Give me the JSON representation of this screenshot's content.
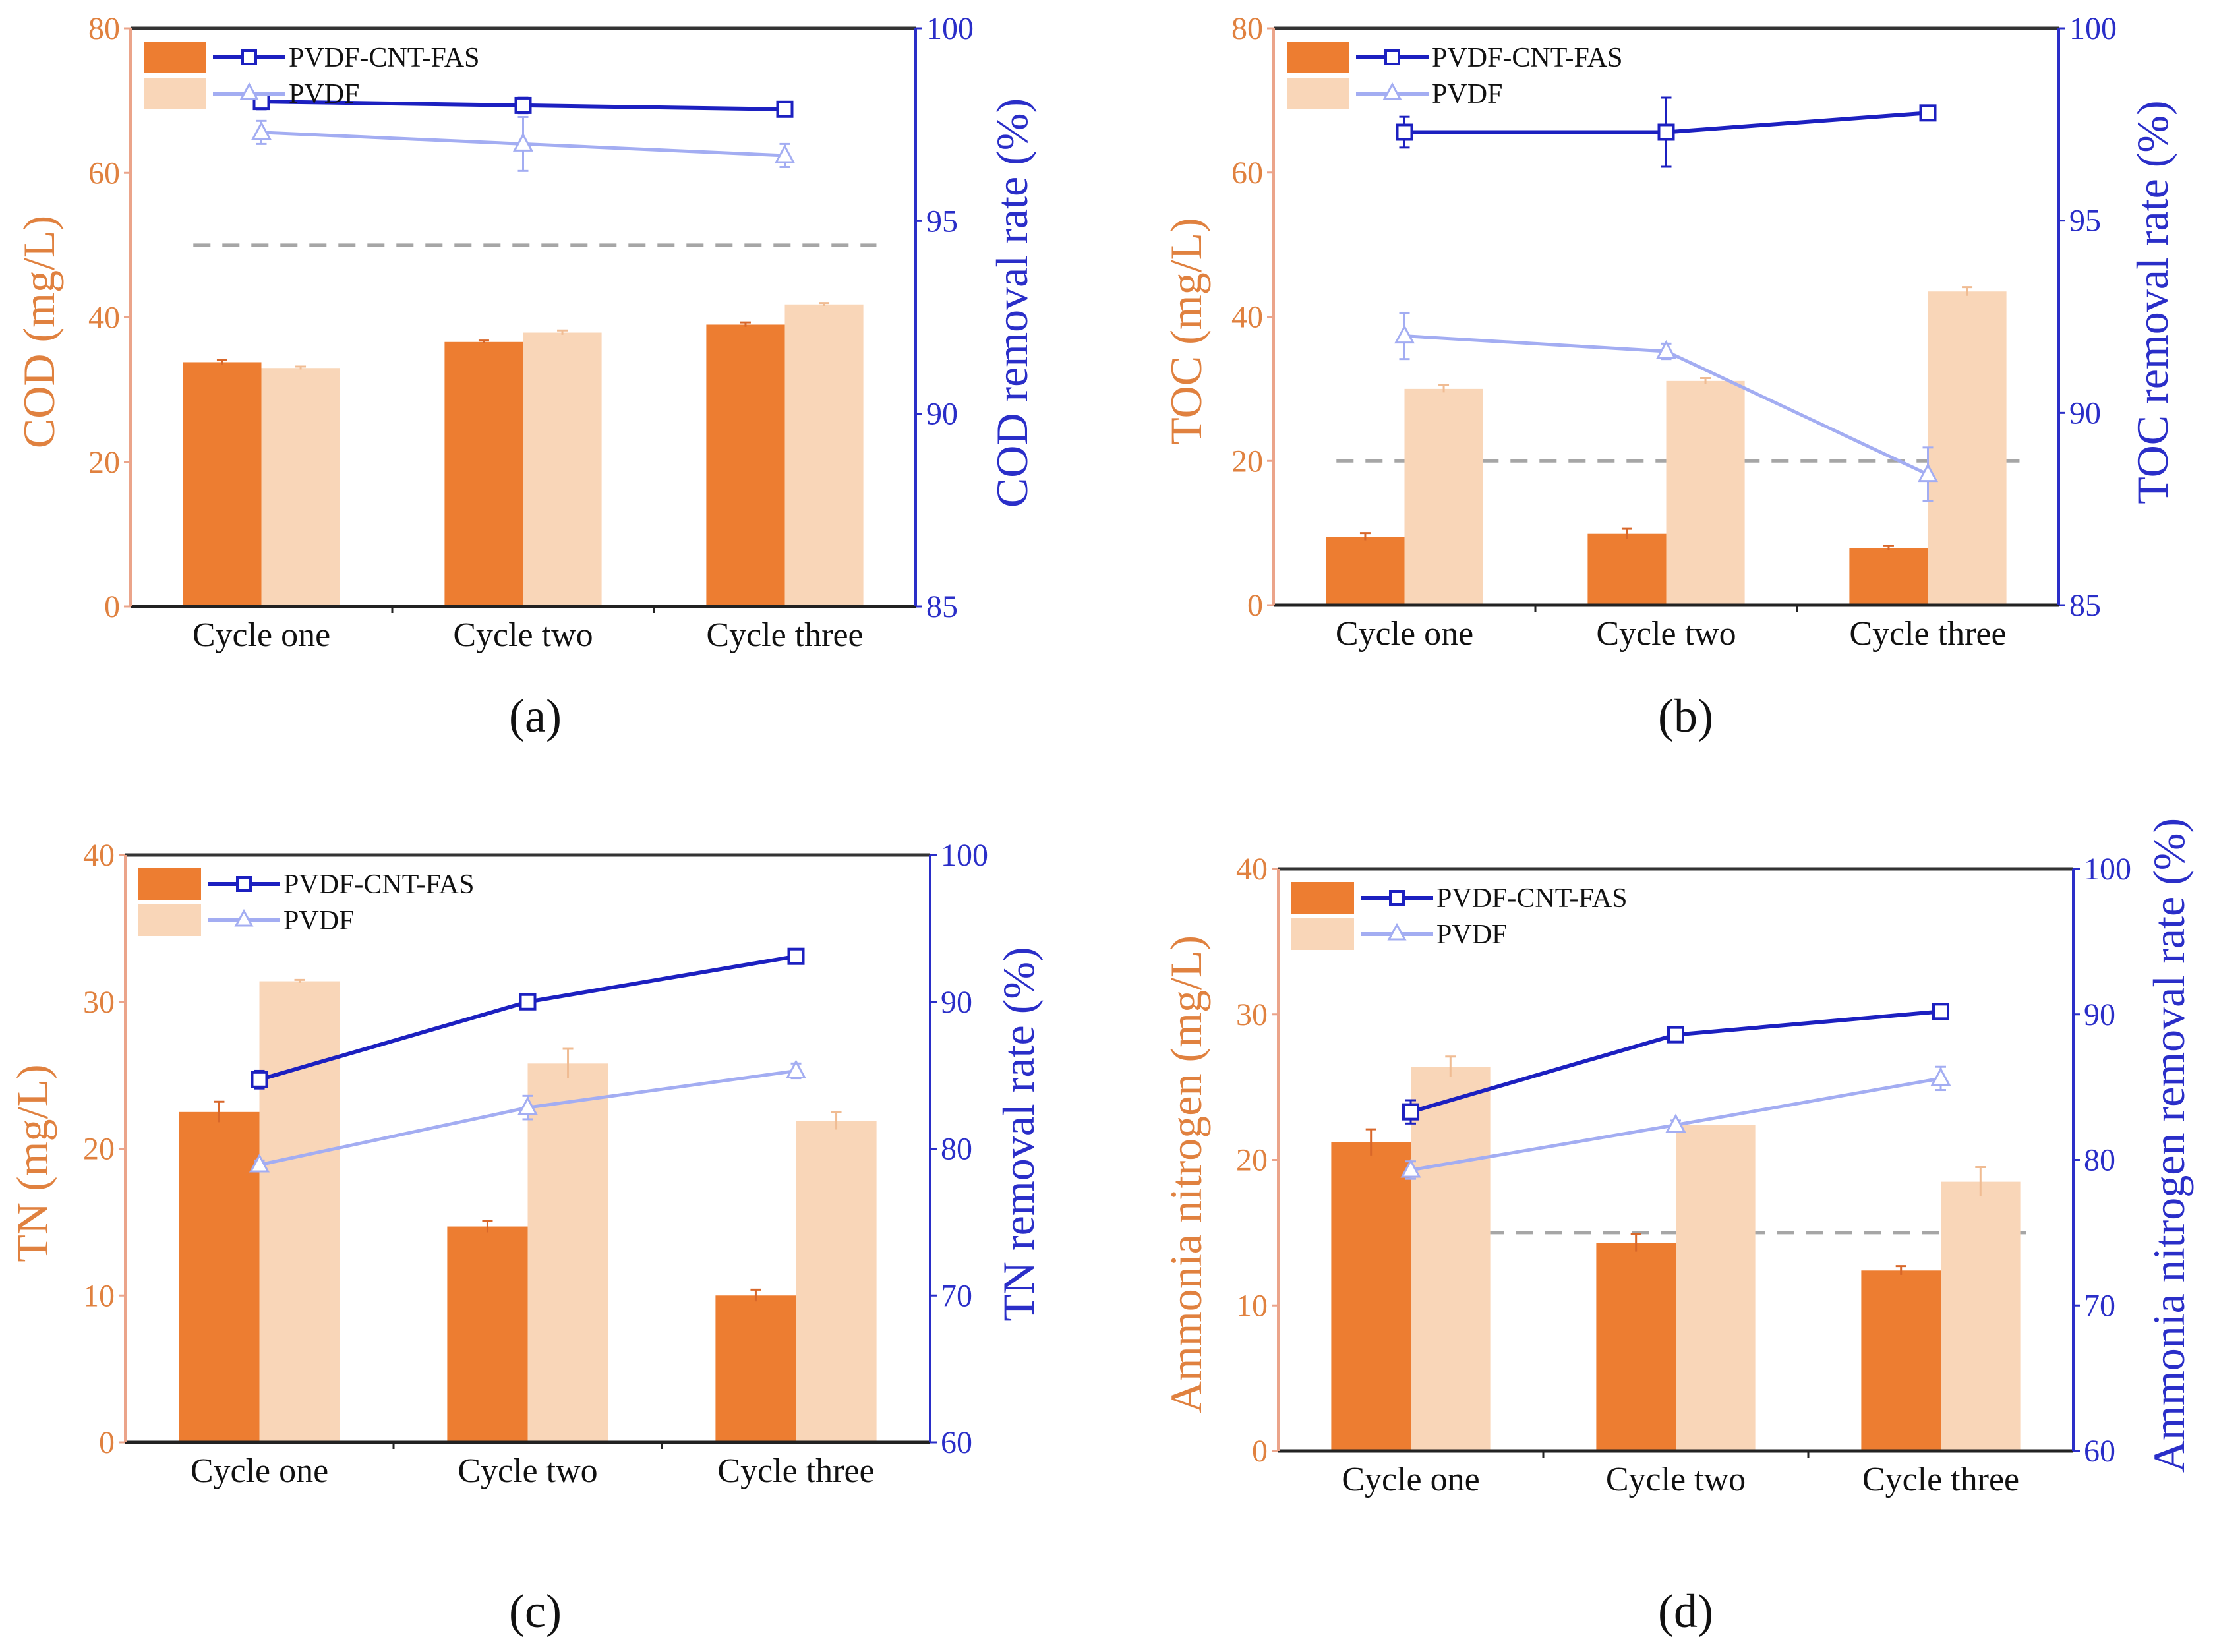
{
  "chart_data": [
    {
      "panel_label": "(a)",
      "type": "bar",
      "categories": [
        "Cycle one",
        "Cycle two",
        "Cycle three"
      ],
      "ylabel": "COD (mg/L)",
      "y2label": "COD removal rate (%)",
      "ylim": [
        0,
        80
      ],
      "yticks": [
        0,
        20,
        40,
        60,
        80
      ],
      "y2lim": [
        85,
        100
      ],
      "y2ticks": [
        85,
        90,
        95,
        100
      ],
      "legend_placement": "top-left",
      "bar_series": [
        {
          "name": "PVDF-CNT-FAS",
          "values": [
            33.8,
            36.6,
            39.0
          ],
          "errors": [
            0.3,
            0.2,
            0.3
          ]
        },
        {
          "name": "PVDF",
          "values": [
            33.0,
            37.9,
            41.8
          ],
          "errors": [
            0.2,
            0.3,
            0.2
          ]
        }
      ],
      "line_series": [
        {
          "name": "PVDF-CNT-FAS",
          "marker": "square",
          "values": [
            98.1,
            98.0,
            97.9
          ],
          "errors": [
            0.2,
            0.2,
            0.1
          ]
        },
        {
          "name": "PVDF",
          "marker": "triangle",
          "values": [
            97.3,
            97.0,
            96.7
          ],
          "errors": [
            0.3,
            0.7,
            0.3
          ]
        }
      ],
      "reference_line": 50
    },
    {
      "panel_label": "(b)",
      "type": "bar",
      "categories": [
        "Cycle one",
        "Cycle two",
        "Cycle three"
      ],
      "ylabel": "TOC (mg/L)",
      "y2label": "TOC removal rate (%)",
      "ylim": [
        0,
        80
      ],
      "yticks": [
        0,
        20,
        40,
        60,
        80
      ],
      "y2lim": [
        85,
        100
      ],
      "y2ticks": [
        85,
        90,
        95,
        100
      ],
      "legend_placement": "top-left",
      "bar_series": [
        {
          "name": "PVDF-CNT-FAS",
          "values": [
            9.5,
            9.9,
            7.9
          ],
          "errors": [
            0.5,
            0.7,
            0.3
          ]
        },
        {
          "name": "PVDF",
          "values": [
            30.0,
            31.1,
            43.5
          ],
          "errors": [
            0.5,
            0.4,
            0.6
          ]
        }
      ],
      "line_series": [
        {
          "name": "PVDF-CNT-FAS",
          "marker": "square",
          "values": [
            97.3,
            97.3,
            97.8
          ],
          "errors": [
            0.4,
            0.9,
            0.1
          ]
        },
        {
          "name": "PVDF",
          "marker": "triangle",
          "values": [
            92.0,
            91.6,
            88.4
          ],
          "errors": [
            0.6,
            0.2,
            0.7
          ]
        }
      ],
      "reference_line": 20
    },
    {
      "panel_label": "(c)",
      "type": "bar",
      "categories": [
        "Cycle one",
        "Cycle two",
        "Cycle three"
      ],
      "ylabel": "TN (mg/L)",
      "y2label": "TN removal rate (%)",
      "ylim": [
        0,
        40
      ],
      "yticks": [
        0,
        10,
        20,
        30,
        40
      ],
      "y2lim": [
        60,
        100
      ],
      "y2ticks": [
        60,
        70,
        80,
        90,
        100
      ],
      "legend_placement": "top-left",
      "bar_series": [
        {
          "name": "PVDF-CNT-FAS",
          "values": [
            22.5,
            14.7,
            10.0
          ],
          "errors": [
            0.7,
            0.4,
            0.4
          ]
        },
        {
          "name": "PVDF",
          "values": [
            31.4,
            25.8,
            21.9
          ],
          "errors": [
            0.1,
            1.0,
            0.6
          ]
        }
      ],
      "line_series": [
        {
          "name": "PVDF-CNT-FAS",
          "marker": "square",
          "values": [
            84.7,
            90.0,
            93.1
          ],
          "errors": [
            0.6,
            0.4,
            0.4
          ]
        },
        {
          "name": "PVDF",
          "marker": "triangle",
          "values": [
            78.9,
            82.8,
            85.3
          ],
          "errors": [
            0.3,
            0.8,
            0.5
          ]
        }
      ],
      "reference_line": null
    },
    {
      "panel_label": "(d)",
      "type": "bar",
      "categories": [
        "Cycle one",
        "Cycle two",
        "Cycle three"
      ],
      "ylabel": "Ammonia nitrogen (mg/L)",
      "y2label": "Ammonia nitrogen removal rate (%)",
      "ylim": [
        0,
        40
      ],
      "yticks": [
        0,
        10,
        20,
        30,
        40
      ],
      "y2lim": [
        60,
        100
      ],
      "y2ticks": [
        60,
        70,
        80,
        90,
        100
      ],
      "legend_placement": "top-left",
      "bar_series": [
        {
          "name": "PVDF-CNT-FAS",
          "values": [
            21.2,
            14.3,
            12.4
          ],
          "errors": [
            0.9,
            0.6,
            0.3
          ]
        },
        {
          "name": "PVDF",
          "values": [
            26.4,
            22.4,
            18.5
          ],
          "errors": [
            0.7,
            0.0,
            1.0
          ]
        }
      ],
      "line_series": [
        {
          "name": "PVDF-CNT-FAS",
          "marker": "square",
          "values": [
            83.3,
            88.6,
            90.2
          ],
          "errors": [
            0.8,
            0.3,
            0.3
          ]
        },
        {
          "name": "PVDF",
          "marker": "triangle",
          "values": [
            79.3,
            82.4,
            85.6
          ],
          "errors": [
            0.6,
            0.3,
            0.8
          ]
        }
      ],
      "reference_line": 15
    }
  ],
  "colors": {
    "bar_cnt": "#ED7D31",
    "bar_pvdf": "#F9D6B8",
    "line_cnt": "#1C20C0",
    "line_pvdf": "#A3ADF2",
    "left_axis": "#E0813F",
    "right_axis": "#2A2EC8",
    "reference": "#A6A6A6"
  }
}
